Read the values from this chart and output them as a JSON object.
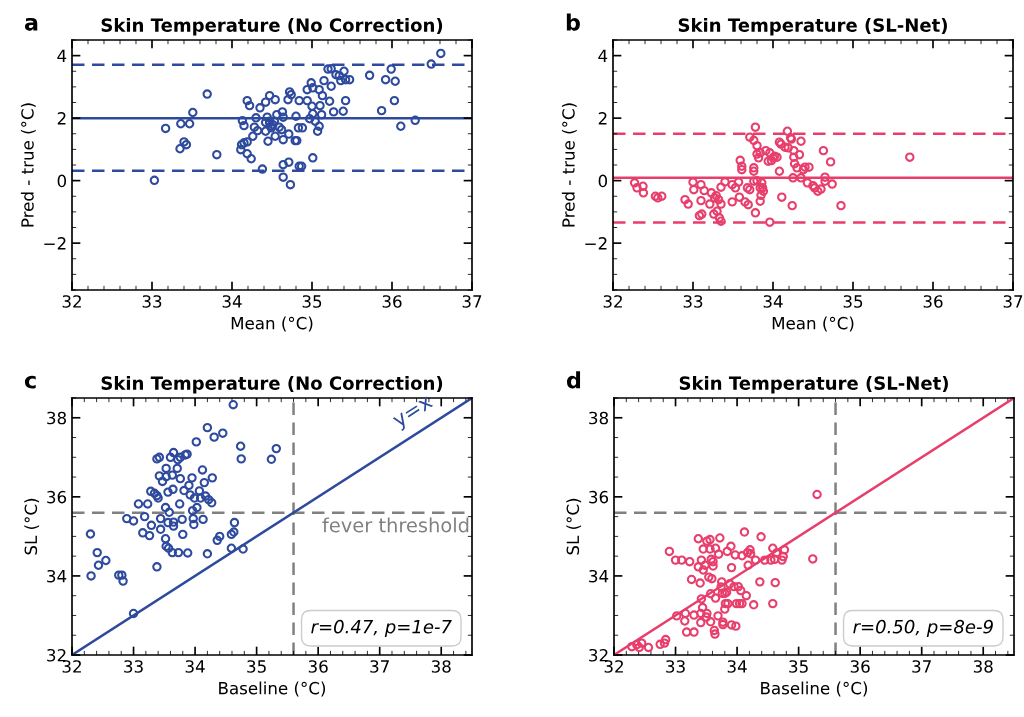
{
  "chart_data": [
    {
      "type": "scatter",
      "title": "Skin Temperature (No Correction)",
      "xlabel": "Mean (°C)",
      "ylabel": "Pred - true (°C)",
      "annotations": [
        "a"
      ],
      "xlim": [
        32,
        37
      ],
      "xticks": [
        32,
        33,
        34,
        35,
        36,
        37
      ],
      "ylim": [
        -3.5,
        4.5
      ],
      "yticks": [
        -2,
        0,
        2,
        4
      ],
      "marker": "circle",
      "grid": false,
      "legend": false,
      "ref_lines": [
        {
          "axis": "y",
          "value": 2.0,
          "color": "#2e4a9e",
          "line_style": "solid"
        },
        {
          "axis": "y",
          "value": 3.71,
          "color": "#2e4a9e",
          "line_style": "dashed"
        },
        {
          "axis": "y",
          "value": 0.32,
          "color": "#2e4a9e",
          "line_style": "dashed"
        }
      ],
      "series": [
        {
          "color": "#2e4a9e",
          "x": [
            33.03,
            33.17,
            33.35,
            33.36,
            33.4,
            33.43,
            33.47,
            33.51,
            33.69,
            33.81,
            34.11,
            34.12,
            34.15,
            34.19,
            34.19,
            34.24,
            34.26,
            34.13,
            34.15,
            34.19,
            34.22,
            34.28,
            34.3,
            34.32,
            34.35,
            34.38,
            34.42,
            34.42,
            34.45,
            34.44,
            34.47,
            34.47,
            34.49,
            34.51,
            34.54,
            34.54,
            34.56,
            34.59,
            34.62,
            34.63,
            34.64,
            34.64,
            34.64,
            34.64,
            34.7,
            34.72,
            34.74,
            34.71,
            34.71,
            34.73,
            34.79,
            34.81,
            34.8,
            34.83,
            34.84,
            34.87,
            34.88,
            34.84,
            34.94,
            34.94,
            34.99,
            35.01,
            35.01,
            34.97,
            35.0,
            35.01,
            35.04,
            35.07,
            35.09,
            35.09,
            35.1,
            35.12,
            35.13,
            35.15,
            35.22,
            35.24,
            35.27,
            35.2,
            35.24,
            35.3,
            35.34,
            35.36,
            35.4,
            35.42,
            35.47,
            35.39,
            35.42,
            35.72,
            35.87,
            35.92,
            35.99,
            36.03,
            36.04,
            36.11,
            36.29,
            36.49,
            36.61,
            34.47,
            34.49,
            34.53,
            34.42
          ],
          "values": [
            0.01,
            1.67,
            1.02,
            1.82,
            1.24,
            1.15,
            1.82,
            2.18,
            2.77,
            0.83,
            0.99,
            1.15,
            1.21,
            1.24,
            0.86,
            0.7,
            1.42,
            1.92,
            1.76,
            2.56,
            2.4,
            1.71,
            2.01,
            1.6,
            2.33,
            0.37,
            2.51,
            1.58,
            1.26,
            2.03,
            2.72,
            1.85,
            1.69,
            1.79,
            2.59,
            1.42,
            2.11,
            1.71,
            1.63,
            2.2,
            2.03,
            1.31,
            0.51,
            0.11,
            2.59,
            2.84,
            2.75,
            1.49,
            0.59,
            -0.13,
            1.28,
            1.28,
            2.06,
            1.69,
            0.46,
            0.46,
            1.69,
            2.56,
            2.56,
            2.91,
            3.13,
            2.97,
            0.73,
            1.98,
            2.38,
            2.14,
            1.9,
            1.58,
            1.74,
            2.91,
            2.4,
            2.11,
            2.72,
            3.2,
            2.54,
            3.02,
            2.2,
            3.57,
            3.58,
            3.39,
            3.36,
            3.2,
            3.5,
            3.23,
            3.23,
            2.22,
            2.56,
            3.37,
            2.24,
            3.23,
            3.57,
            2.56,
            3.18,
            1.74,
            1.93,
            3.73,
            4.07,
            1.9,
            1.74,
            1.9,
            1.86
          ]
        }
      ]
    },
    {
      "type": "scatter",
      "title": "Skin Temperature (SL-Net)",
      "xlabel": "Mean (°C)",
      "ylabel": "Pred - true (°C)",
      "annotations": [
        "b"
      ],
      "xlim": [
        32,
        37
      ],
      "xticks": [
        32,
        33,
        34,
        35,
        36,
        37
      ],
      "ylim": [
        -3.5,
        4.5
      ],
      "yticks": [
        -2,
        0,
        2,
        4
      ],
      "marker": "circle",
      "grid": false,
      "legend": false,
      "ref_lines": [
        {
          "axis": "y",
          "value": 0.09,
          "color": "#e83e6c",
          "line_style": "solid"
        },
        {
          "axis": "y",
          "value": 1.5,
          "color": "#e83e6c",
          "line_style": "dashed"
        },
        {
          "axis": "y",
          "value": -1.34,
          "color": "#e83e6c",
          "line_style": "dashed"
        }
      ],
      "series": [
        {
          "color": "#e83e6c",
          "x": [
            32.27,
            32.3,
            32.375,
            32.38,
            32.53,
            32.56,
            32.61,
            32.9,
            32.94,
            33.0,
            33.01,
            33.08,
            33.11,
            33.1,
            33.1,
            33.14,
            33.21,
            33.23,
            33.26,
            33.27,
            33.29,
            33.3,
            33.32,
            33.33,
            33.35,
            33.35,
            33.35,
            33.4,
            33.49,
            33.49,
            33.53,
            33.57,
            33.58,
            33.59,
            33.61,
            33.61,
            33.65,
            33.68,
            33.69,
            33.71,
            33.71,
            33.76,
            33.76,
            33.76,
            33.76,
            33.78,
            33.78,
            33.8,
            33.8,
            33.8,
            33.82,
            33.84,
            33.84,
            33.84,
            33.85,
            33.86,
            33.87,
            33.88,
            33.91,
            33.94,
            33.96,
            33.96,
            33.98,
            34.0,
            34.02,
            34.05,
            34.08,
            34.08,
            34.1,
            34.11,
            34.15,
            34.18,
            34.19,
            34.22,
            34.23,
            34.24,
            34.25,
            34.26,
            34.26,
            34.27,
            34.3,
            34.33,
            34.35,
            34.35,
            34.38,
            34.4,
            34.43,
            34.45,
            34.5,
            34.52,
            34.56,
            34.6,
            34.63,
            34.65,
            34.65,
            34.72,
            34.74,
            34.85,
            35.71
          ],
          "values": [
            -0.07,
            -0.23,
            -0.18,
            -0.39,
            -0.5,
            -0.55,
            -0.5,
            -0.61,
            -0.75,
            -0.05,
            -0.29,
            -1.12,
            -1.07,
            -0.13,
            -0.64,
            -0.32,
            -0.75,
            -0.39,
            -1.07,
            -0.55,
            -0.48,
            -0.98,
            -0.61,
            -1.19,
            -0.75,
            -1.3,
            -0.21,
            -0.04,
            -0.68,
            -0.13,
            -0.23,
            -0.05,
            -0.53,
            0.65,
            0.35,
            0.46,
            -0.68,
            -0.23,
            -0.77,
            -0.29,
            1.39,
            1.29,
            -0.02,
            0.41,
            0.3,
            1.71,
            -1.03,
            0.0,
            1.12,
            0.85,
            0.73,
            -0.23,
            -0.66,
            0.89,
            -0.47,
            -0.07,
            -0.23,
            -0.34,
            0.96,
            0.62,
            -1.33,
            0.89,
            0.64,
            0.73,
            0.78,
            0.75,
            0.3,
            1.23,
            1.17,
            -0.53,
            1.07,
            1.58,
            1.05,
            1.37,
            1.33,
            -0.8,
            0.09,
            0.75,
            0.96,
            0.54,
            0.41,
            0.83,
            1.26,
            0.09,
            0.35,
            0.43,
            -0.07,
            0.43,
            -0.16,
            -0.23,
            -0.34,
            -0.27,
            0.96,
            0.11,
            -0.02,
            0.6,
            -0.11,
            -0.8,
            0.75
          ]
        }
      ]
    },
    {
      "type": "scatter",
      "title": "Skin Temperature (No Correction)",
      "xlabel": "Baseline (°C)",
      "ylabel": "SL (°C)",
      "annotations": [
        "c",
        "r=0.47, p=1e-7"
      ],
      "xlim": [
        32,
        38.5
      ],
      "xticks": [
        32,
        33,
        34,
        35,
        36,
        37,
        38
      ],
      "ylim": [
        32,
        38.5
      ],
      "yticks": [
        32,
        34,
        36,
        38
      ],
      "marker": "circle",
      "grid": false,
      "legend": false,
      "ref_lines": [
        {
          "axis": "x",
          "value": 35.6,
          "color": "#808080",
          "line_style": "dashed"
        },
        {
          "axis": "y",
          "value": 35.6,
          "color": "#808080",
          "line_style": "dashed",
          "label": "fever threshold"
        }
      ],
      "series": [
        {
          "color": "#2e4a9e",
          "x": [
            32.3,
            32.31,
            32.41,
            32.43,
            32.55,
            32.76,
            32.81,
            32.83,
            33.0,
            32.89,
            33.0,
            33.08,
            33.15,
            33.18,
            33.23,
            33.26,
            33.29,
            33.28,
            33.34,
            33.38,
            33.38,
            33.4,
            33.38,
            33.42,
            33.42,
            33.44,
            33.44,
            33.47,
            33.53,
            33.53,
            33.52,
            33.52,
            33.53,
            33.57,
            33.56,
            33.56,
            33.58,
            33.6,
            33.63,
            33.63,
            33.64,
            33.65,
            33.65,
            33.65,
            33.71,
            33.72,
            33.73,
            33.75,
            33.76,
            33.76,
            33.79,
            33.8,
            33.82,
            33.84,
            33.87,
            33.88,
            33.9,
            33.92,
            33.95,
            33.96,
            33.97,
            33.98,
            33.99,
            34.03,
            34.02,
            34.07,
            34.09,
            34.12,
            34.13,
            34.15,
            34.17,
            34.2,
            34.2,
            34.22,
            34.27,
            34.28,
            34.31,
            34.36,
            34.4,
            34.45,
            34.59,
            34.59,
            34.63,
            34.64,
            34.62,
            34.74,
            34.75,
            34.78,
            35.24,
            35.32
          ],
          "values": [
            35.06,
            34.0,
            34.59,
            34.27,
            34.39,
            34.02,
            34.02,
            33.87,
            33.05,
            35.45,
            35.39,
            35.82,
            35.09,
            35.5,
            35.82,
            35.02,
            35.28,
            36.14,
            36.09,
            34.23,
            36.03,
            35.97,
            36.96,
            37.0,
            36.53,
            35.45,
            35.18,
            36.39,
            36.72,
            36.51,
            35.73,
            34.94,
            34.75,
            34.7,
            36.12,
            35.35,
            35.61,
            37.0,
            36.55,
            34.59,
            36.19,
            37.12,
            35.26,
            35.36,
            36.72,
            36.94,
            34.59,
            35.82,
            36.46,
            37.0,
            35.43,
            35.05,
            36.16,
            37.06,
            37.08,
            34.58,
            36.29,
            36.05,
            36.48,
            35.65,
            35.45,
            35.3,
            35.97,
            35.73,
            37.39,
            36.15,
            35.97,
            36.68,
            35.43,
            36.36,
            36.02,
            34.56,
            37.75,
            35.93,
            35.85,
            36.48,
            37.51,
            34.9,
            35.0,
            37.61,
            34.7,
            35.05,
            35.11,
            35.35,
            38.33,
            37.28,
            36.96,
            34.68,
            36.95,
            37.22
          ]
        },
        {
          "type": "line",
          "name": "y=x",
          "color": "#2e4a9e",
          "marker": "none",
          "x": [
            32,
            38.5
          ],
          "values": [
            32,
            38.5
          ]
        }
      ]
    },
    {
      "type": "scatter",
      "title": "Skin Temperature (SL-Net)",
      "xlabel": "Baseline (°C)",
      "ylabel": "SL (°C)",
      "annotations": [
        "d",
        "r=0.50, p=8e-9"
      ],
      "xlim": [
        32,
        38.5
      ],
      "xticks": [
        32,
        33,
        34,
        35,
        36,
        37,
        38
      ],
      "ylim": [
        32,
        38.5
      ],
      "yticks": [
        32,
        34,
        36,
        38
      ],
      "marker": "circle",
      "grid": false,
      "legend": false,
      "ref_lines": [
        {
          "axis": "x",
          "value": 35.6,
          "color": "#808080",
          "line_style": "dashed"
        },
        {
          "axis": "y",
          "value": 35.6,
          "color": "#808080",
          "line_style": "dashed"
        }
      ],
      "series": [
        {
          "color": "#e83e6c",
          "x": [
            32.29,
            32.37,
            32.41,
            32.45,
            32.56,
            32.75,
            32.82,
            32.84,
            32.9,
            33.0,
            33.02,
            33.1,
            33.16,
            33.15,
            33.18,
            33.23,
            33.26,
            33.3,
            33.3,
            33.37,
            33.37,
            33.4,
            33.41,
            33.41,
            33.42,
            33.42,
            33.44,
            33.45,
            33.45,
            33.48,
            33.5,
            33.51,
            33.51,
            33.54,
            33.56,
            33.56,
            33.57,
            33.57,
            33.58,
            33.59,
            33.61,
            33.61,
            33.63,
            33.64,
            33.65,
            33.65,
            33.69,
            33.7,
            33.72,
            33.74,
            33.75,
            33.76,
            33.77,
            33.77,
            33.8,
            33.8,
            33.81,
            33.83,
            33.84,
            33.85,
            33.88,
            33.9,
            33.91,
            33.91,
            33.95,
            33.97,
            33.98,
            33.99,
            34.02,
            34.04,
            34.06,
            34.08,
            34.08,
            34.12,
            34.15,
            34.17,
            34.18,
            34.21,
            34.22,
            34.27,
            34.3,
            34.37,
            34.39,
            34.45,
            34.55,
            34.58,
            34.58,
            34.61,
            34.62,
            34.64,
            34.73,
            34.75,
            34.77,
            35.23,
            35.3
          ],
          "values": [
            32.21,
            32.26,
            32.19,
            32.3,
            32.19,
            32.27,
            32.3,
            32.39,
            34.62,
            34.4,
            32.99,
            34.4,
            33.05,
            32.86,
            32.58,
            34.36,
            33.91,
            32.58,
            33.01,
            34.94,
            34.23,
            33.82,
            32.82,
            33.05,
            33.42,
            34.4,
            33.2,
            34.68,
            34.15,
            34.27,
            32.96,
            34.88,
            33.05,
            33.97,
            34.92,
            34.68,
            33.55,
            32.84,
            34.42,
            33.93,
            34.36,
            34.25,
            32.62,
            32.53,
            33.44,
            34.7,
            32.99,
            34.55,
            34.96,
            33.72,
            33.85,
            33.56,
            32.77,
            32.83,
            33.56,
            33.16,
            33.3,
            33.59,
            34.62,
            33.3,
            33.8,
            34.75,
            34.21,
            32.76,
            33.73,
            34.53,
            32.73,
            33.3,
            33.73,
            33.3,
            33.63,
            33.3,
            34.51,
            35.11,
            33.5,
            34.59,
            34.27,
            34.66,
            34.56,
            33.27,
            34.4,
            33.85,
            34.99,
            34.4,
            34.4,
            34.7,
            33.3,
            34.42,
            33.83,
            34.58,
            34.4,
            34.49,
            34.66,
            34.43,
            36.06
          ]
        },
        {
          "type": "line",
          "color": "#e83e6c",
          "marker": "none",
          "x": [
            32,
            38.5
          ],
          "values": [
            32,
            38.5
          ]
        }
      ]
    }
  ]
}
